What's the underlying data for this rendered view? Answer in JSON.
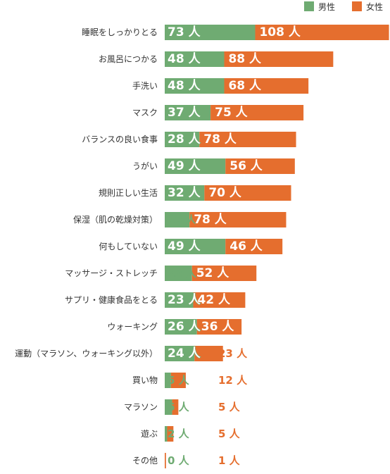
{
  "chart_data": {
    "type": "bar",
    "orientation": "horizontal",
    "stacked": true,
    "unit": "人",
    "legend_position": "top-right",
    "grid": false,
    "categories": [
      "睡眠をしっかりとる",
      "お風呂につかる",
      "手洗い",
      "マスク",
      "バランスの良い食事",
      "うがい",
      "規則正しい生活",
      "保湿（肌の乾燥対策）",
      "何もしていない",
      "マッサージ・ストレッチ",
      "サプリ・健康食品をとる",
      "ウォーキング",
      "運動（マラソン、ウォーキング以外）",
      "買い物",
      "マラソン",
      "遊ぶ",
      "その他"
    ],
    "series": [
      {
        "name": "男性",
        "color": "#6fab72",
        "values": [
          73,
          48,
          48,
          37,
          28,
          49,
          32,
          20,
          49,
          22,
          23,
          26,
          24,
          5,
          6,
          2,
          0
        ]
      },
      {
        "name": "女性",
        "color": "#e56e2e",
        "values": [
          108,
          88,
          68,
          75,
          78,
          56,
          70,
          78,
          46,
          52,
          42,
          36,
          23,
          12,
          5,
          5,
          1
        ]
      }
    ]
  }
}
